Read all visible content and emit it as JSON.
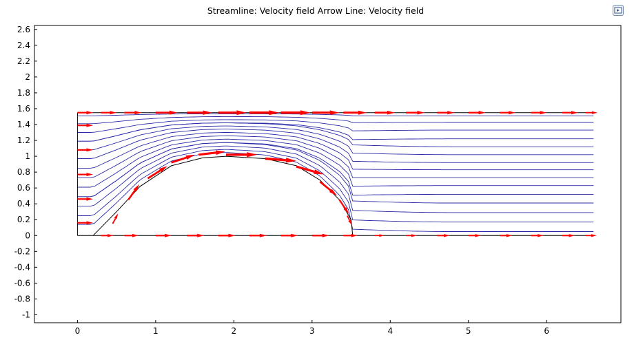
{
  "title": "Streamline: Velocity field  Arrow Line: Velocity field",
  "toolbar": {
    "export_icon": "export-image-icon"
  },
  "colors": {
    "streamline": "#2a2aa8",
    "arrow": "#ff0000",
    "boundary": "#000000",
    "background": "#ffffff"
  },
  "chart_data": {
    "type": "streamline",
    "title": "Streamline: Velocity field  Arrow Line: Velocity field",
    "xlim": [
      -0.55,
      6.95
    ],
    "ylim": [
      -1.1,
      2.65
    ],
    "grid": false,
    "xticks": [
      0,
      1,
      2,
      3,
      4,
      5,
      6
    ],
    "xtick_labels": [
      "0",
      "1",
      "2",
      "3",
      "4",
      "5",
      "6"
    ],
    "yticks": [
      -1,
      -0.8,
      -0.6,
      -0.4,
      -0.2,
      0,
      0.2,
      0.4,
      0.6,
      0.8,
      1,
      1.2,
      1.4,
      1.6,
      1.8,
      2,
      2.2,
      2.4,
      2.6
    ],
    "ytick_labels": [
      "-1",
      "-0.8",
      "-0.6",
      "-0.4",
      "-0.2",
      "0",
      "0.2",
      "0.4",
      "0.6",
      "0.8",
      "1",
      "1.2",
      "1.4",
      "1.6",
      "1.8",
      "2",
      "2.2",
      "2.4",
      "2.6"
    ],
    "domain": {
      "channel": {
        "x": [
          0,
          6.6
        ],
        "y": [
          0,
          1.55
        ]
      },
      "bump": [
        [
          0.2,
          0
        ],
        [
          0.5,
          0.3
        ],
        [
          0.8,
          0.62
        ],
        [
          1.2,
          0.88
        ],
        [
          1.6,
          0.98
        ],
        [
          1.9,
          1.0
        ],
        [
          2.4,
          0.97
        ],
        [
          2.8,
          0.88
        ],
        [
          3.1,
          0.7
        ],
        [
          3.35,
          0.45
        ],
        [
          3.5,
          0.2
        ],
        [
          3.52,
          0.0
        ]
      ]
    },
    "streamlines": {
      "inlet_x": 0,
      "outlet_x": 6.6,
      "inlet_y": [
        0.14,
        0.25,
        0.37,
        0.49,
        0.61,
        0.73,
        0.85,
        0.97,
        1.08,
        1.19,
        1.3,
        1.41,
        1.51
      ],
      "outlet_y": [
        0.05,
        0.17,
        0.29,
        0.41,
        0.52,
        0.63,
        0.73,
        0.83,
        0.92,
        1.02,
        1.12,
        1.22,
        1.33,
        1.43,
        1.51
      ]
    },
    "arrows": [
      {
        "line": "inlet",
        "x": [
          0,
          0,
          0,
          0,
          0,
          0
        ],
        "y": [
          0.16,
          0.46,
          0.77,
          1.08,
          1.39,
          1.55
        ],
        "u": [
          0.2,
          0.2,
          0.2,
          0.2,
          0.2,
          0.2
        ],
        "v": [
          0,
          0,
          0,
          0,
          0,
          0
        ]
      },
      {
        "line": "top",
        "x": [
          0.3,
          0.6,
          1.0,
          1.4,
          1.8,
          2.2,
          2.6,
          3.0,
          3.4,
          3.8,
          4.2,
          4.6,
          5.0,
          5.4,
          5.8,
          6.2,
          6.5
        ],
        "y": [
          1.55,
          1.55,
          1.55,
          1.55,
          1.55,
          1.55,
          1.55,
          1.55,
          1.55,
          1.55,
          1.55,
          1.55,
          1.55,
          1.55,
          1.55,
          1.55,
          1.55
        ],
        "u": [
          0.2,
          0.22,
          0.28,
          0.32,
          0.36,
          0.38,
          0.38,
          0.35,
          0.3,
          0.26,
          0.24,
          0.22,
          0.22,
          0.2,
          0.2,
          0.2,
          0.15
        ],
        "v": [
          0,
          0,
          0,
          0,
          0,
          0,
          0,
          0,
          0,
          0,
          0,
          0,
          0,
          0,
          0,
          0,
          0
        ]
      },
      {
        "line": "bump",
        "x": [
          0.45,
          0.65,
          0.9,
          1.2,
          1.55,
          1.9,
          2.4,
          2.8,
          3.1,
          3.35,
          3.45
        ],
        "y": [
          0.15,
          0.45,
          0.72,
          0.92,
          1.02,
          1.02,
          0.97,
          0.87,
          0.68,
          0.45,
          0.25
        ],
        "u": [
          0.07,
          0.14,
          0.25,
          0.3,
          0.34,
          0.4,
          0.4,
          0.35,
          0.22,
          0.12,
          0.06
        ],
        "v": [
          0.13,
          0.2,
          0.16,
          0.1,
          0.04,
          0.0,
          -0.03,
          -0.1,
          -0.18,
          -0.18,
          -0.12
        ]
      },
      {
        "line": "bottom",
        "x": [
          0.3,
          0.6,
          1.0,
          1.4,
          1.8,
          2.2,
          2.6,
          3.0,
          3.4,
          3.8,
          4.2,
          4.6,
          5.0,
          5.4,
          5.8,
          6.2,
          6.5
        ],
        "y": [
          0,
          0,
          0,
          0,
          0,
          0,
          0,
          0,
          0,
          0,
          0,
          0,
          0,
          0,
          0,
          0,
          0
        ],
        "u": [
          0.16,
          0.18,
          0.2,
          0.22,
          0.22,
          0.22,
          0.22,
          0.22,
          0.18,
          0.12,
          0.14,
          0.16,
          0.16,
          0.16,
          0.16,
          0.16,
          0.14
        ],
        "v": [
          0,
          0,
          0,
          0,
          0,
          0,
          0,
          0,
          0,
          0,
          0,
          0,
          0,
          0,
          0,
          0,
          0
        ]
      }
    ]
  }
}
